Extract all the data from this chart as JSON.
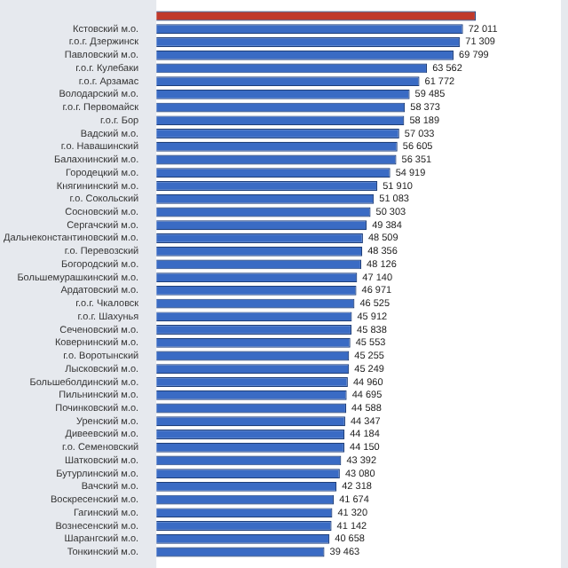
{
  "chart_data": {
    "type": "bar",
    "orientation": "horizontal",
    "tick_labels": "y",
    "xlim": [
      0,
      95000
    ],
    "categories": [
      null,
      "Кстовский м.о.",
      "г.о.г. Дзержинск",
      "Павловский м.о.",
      "г.о.г. Кулебаки",
      "г.о.г. Арзамас",
      "Володарский м.о.",
      "г.о.г. Первомайск",
      "г.о.г. Бор",
      "Вадский м.о.",
      "г.о. Навашинский",
      "Балахнинский м.о.",
      "Городецкий м.о.",
      "Княгининский м.о.",
      "г.о. Сокольский",
      "Сосновский м.о.",
      "Сергачский м.о.",
      "Дальнеконстантиновский м.о.",
      "г.о. Перевозский",
      "Богородский м.о.",
      "Большемурашкинский м.о.",
      "Ардатовский м.о.",
      "г.о.г. Чкаловск",
      "г.о.г. Шахунья",
      "Сеченовский м.о.",
      "Ковернинский м.о.",
      "г.о. Воротынский",
      "Лысковский м.о.",
      "Большеболдинский м.о.",
      "Пильнинский м.о.",
      "Починковский м.о.",
      "Уренский м.о.",
      "Дивеевский м.о.",
      "г.о. Семеновский",
      "Шатковский м.о.",
      "Бутурлинский м.о.",
      "Вачский м.о.",
      "Воскресенский м.о.",
      "Гагинский м.о.",
      "Вознесенский м.о.",
      "Шарангский м.о.",
      "Тонкинский м.о."
    ],
    "values": [
      75000,
      72011,
      71309,
      69799,
      63562,
      61772,
      59485,
      58373,
      58189,
      57033,
      56605,
      56351,
      54919,
      51910,
      51083,
      50303,
      49384,
      48509,
      48356,
      48126,
      47140,
      46971,
      46525,
      45912,
      45838,
      45553,
      45255,
      45249,
      44960,
      44695,
      44588,
      44347,
      44184,
      44150,
      43392,
      43080,
      42318,
      41674,
      41320,
      41142,
      40658,
      39463
    ],
    "value_labels": [
      null,
      "72 011",
      "71 309",
      "69 799",
      "63 562",
      "61 772",
      "59 485",
      "58 373",
      "58 189",
      "57 033",
      "56 605",
      "56 351",
      "54 919",
      "51 910",
      "51 083",
      "50 303",
      "49 384",
      "48 509",
      "48 356",
      "48 126",
      "47 140",
      "46 971",
      "46 525",
      "45 912",
      "45 838",
      "45 553",
      "45 255",
      "45 249",
      "44 960",
      "44 695",
      "44 588",
      "44 347",
      "44 184",
      "44 150",
      "43 392",
      "43 080",
      "42 318",
      "41 674",
      "41 320",
      "41 142",
      "40 658",
      "39 463"
    ],
    "colors": [
      "#c0392b",
      "#3a6bc4",
      "#3a6bc4",
      "#3a6bc4",
      "#3a6bc4",
      "#3a6bc4",
      "#3a6bc4",
      "#3a6bc4",
      "#3a6bc4",
      "#3a6bc4",
      "#3a6bc4",
      "#3a6bc4",
      "#3a6bc4",
      "#3a6bc4",
      "#3a6bc4",
      "#3a6bc4",
      "#3a6bc4",
      "#3a6bc4",
      "#3a6bc4",
      "#3a6bc4",
      "#3a6bc4",
      "#3a6bc4",
      "#3a6bc4",
      "#3a6bc4",
      "#3a6bc4",
      "#3a6bc4",
      "#3a6bc4",
      "#3a6bc4",
      "#3a6bc4",
      "#3a6bc4",
      "#3a6bc4",
      "#3a6bc4",
      "#3a6bc4",
      "#3a6bc4",
      "#3a6bc4",
      "#3a6bc4",
      "#3a6bc4",
      "#3a6bc4",
      "#3a6bc4",
      "#3a6bc4",
      "#3a6bc4",
      "#3a6bc4"
    ]
  }
}
